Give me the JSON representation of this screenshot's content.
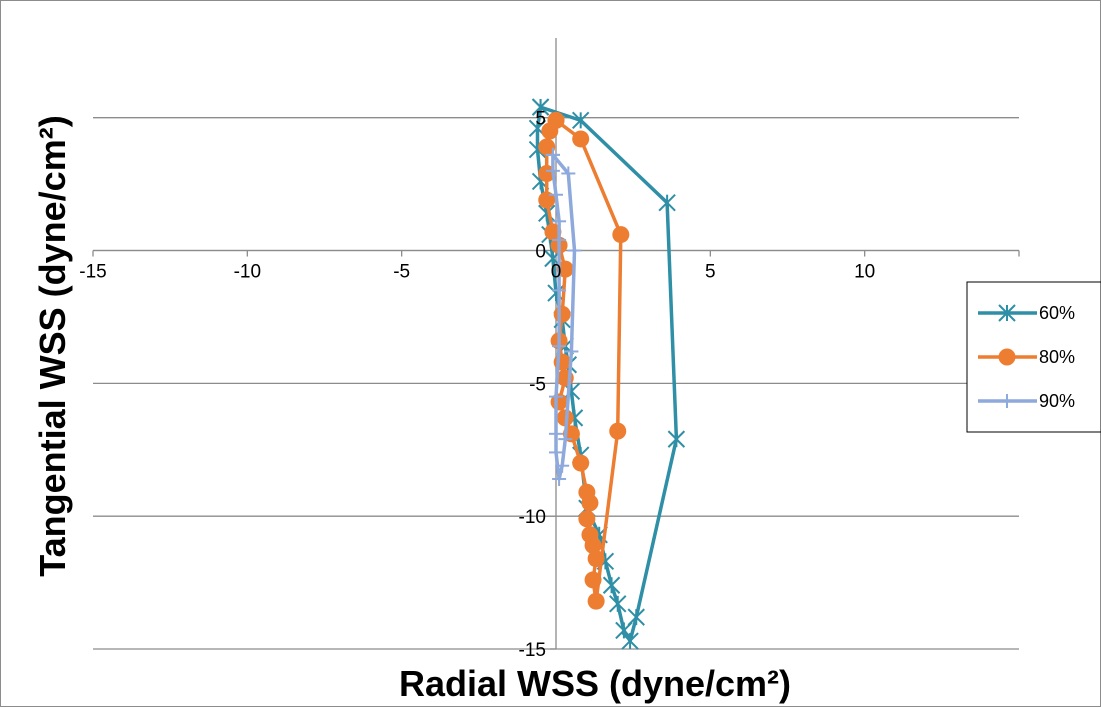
{
  "chart_data": {
    "type": "scatter",
    "xlabel": "Radial WSS (dyne/cm²)",
    "ylabel": "Tangential WSS (dyne/cm²)",
    "xlim": [
      -15,
      15
    ],
    "ylim": [
      -15,
      8
    ],
    "x_ticks": [
      -15,
      -10,
      -5,
      0,
      5,
      10
    ],
    "y_ticks": [
      5,
      0,
      -5,
      -10,
      -15
    ],
    "x_tick_labels": [
      "-15",
      "-10",
      "-5",
      "0",
      "5",
      "10"
    ],
    "y_tick_labels": [
      "5",
      "0",
      "-5",
      "-10",
      "-15"
    ],
    "grid": "horizontal",
    "legend_position": "right",
    "series": [
      {
        "name": "60%",
        "color": "#2e8fa6",
        "marker": "asterisk",
        "points": [
          [
            -0.5,
            5.4
          ],
          [
            0.8,
            4.9
          ],
          [
            3.6,
            1.8
          ],
          [
            3.9,
            -7.1
          ],
          [
            2.6,
            -13.8
          ],
          [
            2.4,
            -14.7
          ],
          [
            2.2,
            -14.3
          ],
          [
            2.0,
            -13.3
          ],
          [
            1.8,
            -12.6
          ],
          [
            1.6,
            -11.7
          ],
          [
            1.4,
            -10.7
          ],
          [
            1.0,
            -9.7
          ],
          [
            0.8,
            -7.7
          ],
          [
            0.6,
            -6.3
          ],
          [
            0.5,
            -5.3
          ],
          [
            0.4,
            -4.3
          ],
          [
            0.3,
            -3.6
          ],
          [
            0.2,
            -2.6
          ],
          [
            0.0,
            -1.6
          ],
          [
            -0.1,
            -0.3
          ],
          [
            -0.2,
            0.6
          ],
          [
            -0.3,
            1.4
          ],
          [
            -0.5,
            2.6
          ],
          [
            -0.6,
            3.8
          ],
          [
            -0.6,
            4.6
          ],
          [
            -0.5,
            5.4
          ]
        ]
      },
      {
        "name": "80%",
        "color": "#ed7d31",
        "marker": "circle",
        "points": [
          [
            0.0,
            4.9
          ],
          [
            0.8,
            4.2
          ],
          [
            2.1,
            0.6
          ],
          [
            2.0,
            -6.8
          ],
          [
            1.3,
            -13.2
          ],
          [
            1.2,
            -12.4
          ],
          [
            1.3,
            -11.6
          ],
          [
            1.2,
            -11.1
          ],
          [
            1.1,
            -10.7
          ],
          [
            1.0,
            -10.1
          ],
          [
            1.1,
            -9.5
          ],
          [
            1.0,
            -9.1
          ],
          [
            0.8,
            -8.0
          ],
          [
            0.5,
            -6.9
          ],
          [
            0.3,
            -6.3
          ],
          [
            0.1,
            -5.7
          ],
          [
            0.3,
            -4.8
          ],
          [
            0.2,
            -4.2
          ],
          [
            0.1,
            -3.4
          ],
          [
            0.2,
            -2.4
          ],
          [
            0.3,
            -0.7
          ],
          [
            0.1,
            0.2
          ],
          [
            -0.1,
            0.7
          ],
          [
            -0.3,
            1.9
          ],
          [
            -0.3,
            2.9
          ],
          [
            -0.3,
            3.9
          ],
          [
            -0.2,
            4.5
          ],
          [
            0.0,
            4.9
          ]
        ]
      },
      {
        "name": "90%",
        "color": "#8ea9db",
        "marker": "plus",
        "points": [
          [
            -0.1,
            3.6
          ],
          [
            0.4,
            2.9
          ],
          [
            0.6,
            0.0
          ],
          [
            0.5,
            -3.8
          ],
          [
            0.3,
            -7.1
          ],
          [
            0.2,
            -8.1
          ],
          [
            0.1,
            -8.6
          ],
          [
            0.0,
            -7.6
          ],
          [
            0.0,
            -6.9
          ],
          [
            0.0,
            -5.5
          ],
          [
            0.1,
            -3.6
          ],
          [
            0.1,
            -1.5
          ],
          [
            0.1,
            0.4
          ],
          [
            0.1,
            1.1
          ],
          [
            0.0,
            2.1
          ],
          [
            -0.1,
            3.0
          ],
          [
            -0.1,
            3.6
          ]
        ]
      }
    ]
  }
}
